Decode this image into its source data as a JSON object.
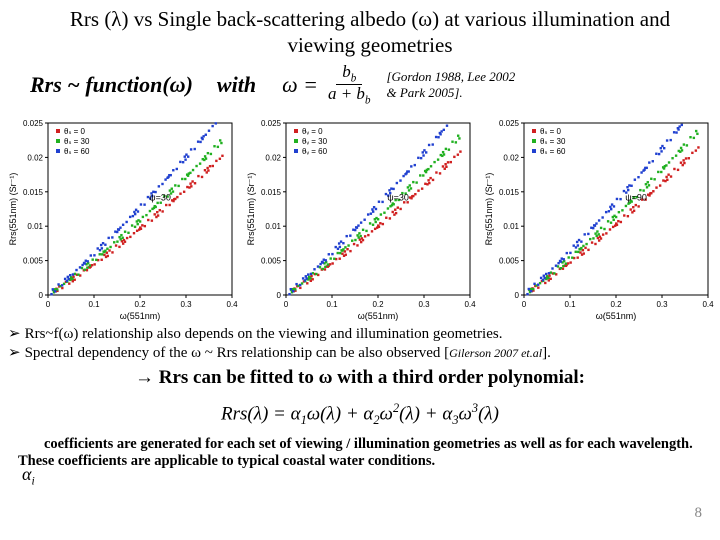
{
  "title": "Rrs (λ) vs Single back-scattering albedo (ω) at various illumination and viewing geometries",
  "func": "Rrs ~ function(ω)",
  "with": "with",
  "omega_sym": "ω =",
  "frac_num": "b",
  "frac_num_sub": "b",
  "frac_den": "a + b",
  "frac_den_sub": "b",
  "cite": "[Gordon 1988, Lee 2002 & Park 2005].",
  "bullet1": "Rrs~f(ω)  relationship also depends on the viewing and illumination geometries.",
  "bullet2_a": "Spectral dependency of the ω ~ Rrs relationship can be also observed [",
  "bullet2_cite": "Gilerson 2007 et.al",
  "bullet2_b": "].",
  "conclusion": " Rrs can be fitted to ω with a third order polynomial:",
  "alpha_label": "α",
  "alpha_sub": "i",
  "bottom1": "coefficients are generated for each set of viewing / illumination geometries as well as for each wavelength.",
  "bottom2": "These coefficients are applicable to typical coastal water conditions.",
  "pagenum": "8",
  "charts": [
    {
      "legend_title": [
        "θₛ = 0",
        "θₛ = 30",
        "θₛ = 60"
      ],
      "psi_label": "ψ=30",
      "xlabel": "ω(551nm)",
      "ylabel": "Rrs(551nm) (Sr⁻¹)",
      "xlim": [
        0,
        0.4
      ],
      "xticks": [
        0,
        0.1,
        0.2,
        0.3,
        0.4
      ],
      "ylim": [
        0,
        0.025
      ],
      "yticks": [
        0,
        0.005,
        0.01,
        0.015,
        0.02,
        0.025
      ],
      "colors": [
        "#d02020",
        "#20b020",
        "#2040d0"
      ],
      "bg": "#ffffff",
      "axis_color": "#000000"
    },
    {
      "legend_title": [
        "θᵥ = 0",
        "θᵥ = 30",
        "θᵥ = 60"
      ],
      "psi_label": "ψ=30",
      "xlabel": "ω(551nm)",
      "ylabel": "Rrs(551nm) (Sr⁻¹)",
      "xlim": [
        0,
        0.4
      ],
      "xticks": [
        0,
        0.1,
        0.2,
        0.3,
        0.4
      ],
      "ylim": [
        0,
        0.025
      ],
      "yticks": [
        0,
        0.005,
        0.01,
        0.015,
        0.02,
        0.025
      ],
      "colors": [
        "#d02020",
        "#20b020",
        "#2040d0"
      ],
      "bg": "#ffffff",
      "axis_color": "#000000"
    },
    {
      "legend_title": [
        "θₛ = 0",
        "θₛ = 30",
        "θₛ = 60"
      ],
      "psi_label": "ψ=90",
      "xlabel": "ω(551nm)",
      "ylabel": "Rrs(551nm) (Sr⁻¹)",
      "xlim": [
        0,
        0.4
      ],
      "xticks": [
        0,
        0.1,
        0.2,
        0.3,
        0.4
      ],
      "ylim": [
        0,
        0.025
      ],
      "yticks": [
        0,
        0.005,
        0.01,
        0.015,
        0.02,
        0.025
      ],
      "colors": [
        "#d02020",
        "#20b020",
        "#2040d0"
      ],
      "bg": "#ffffff",
      "axis_color": "#000000"
    }
  ]
}
